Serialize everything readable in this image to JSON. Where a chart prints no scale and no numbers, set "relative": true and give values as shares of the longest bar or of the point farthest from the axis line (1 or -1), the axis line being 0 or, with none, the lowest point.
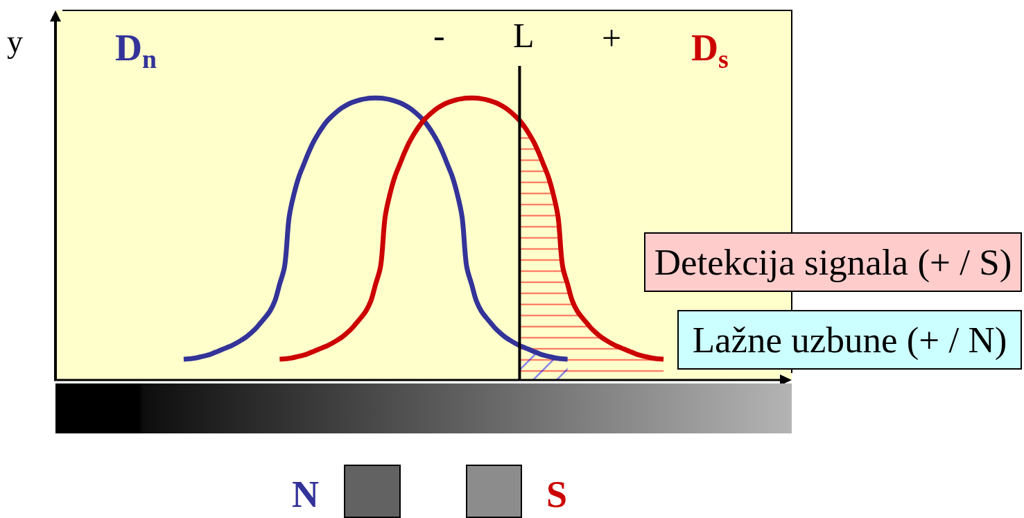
{
  "chart_data": {
    "type": "line",
    "relative": true,
    "categories": [
      null,
      null,
      null,
      null,
      null,
      null,
      null,
      null,
      null,
      null,
      null,
      null,
      null,
      null,
      null,
      null,
      null,
      null,
      null,
      null,
      null,
      null,
      null,
      null,
      null,
      null,
      null,
      null,
      null,
      null,
      null,
      null,
      null,
      null,
      null,
      null,
      null,
      null,
      null,
      null,
      null,
      null,
      null,
      null,
      null,
      null,
      null,
      null,
      null,
      null,
      null,
      null,
      null,
      null,
      null,
      null,
      null,
      null,
      null,
      null,
      null,
      null,
      null,
      null,
      null,
      null,
      null,
      null,
      null,
      null,
      null,
      null,
      null,
      null,
      null,
      null,
      null,
      null,
      null,
      null,
      null,
      null,
      null,
      null,
      null,
      null,
      null,
      null,
      null,
      null,
      null,
      null,
      null,
      null,
      null,
      null,
      null,
      null,
      null,
      null,
      null
    ],
    "series": [
      {
        "name": "D$_{n}$",
        "color": "#333399",
        "values": [
          0.074,
          0.075,
          0.077,
          0.08,
          0.084,
          0.088,
          0.094,
          0.101,
          0.108,
          0.115,
          0.122,
          0.131,
          0.141,
          0.152,
          0.166,
          0.182,
          0.202,
          0.222,
          0.245,
          0.28,
          0.34,
          0.4,
          0.58,
          0.66,
          0.72,
          0.763,
          0.805,
          0.842,
          0.872,
          0.898,
          0.92,
          0.937,
          0.952,
          0.965,
          0.975,
          0.983,
          0.989,
          0.994,
          0.997,
          0.999,
          1.0,
          0.999,
          0.997,
          0.994,
          0.989,
          0.983,
          0.975,
          0.965,
          0.952,
          0.937,
          0.92,
          0.898,
          0.872,
          0.842,
          0.805,
          0.763,
          0.72,
          0.66,
          0.58,
          0.4,
          0.34,
          0.28,
          0.245,
          0.222,
          0.202,
          0.182,
          0.166,
          0.152,
          0.141,
          0.131,
          0.122,
          0.115,
          0.108,
          0.101,
          0.094,
          0.088,
          0.084,
          0.08,
          0.077,
          0.075,
          0.074,
          null,
          null,
          null,
          null,
          null,
          null,
          null,
          null,
          null,
          null,
          null,
          null,
          null,
          null,
          null,
          null,
          null,
          null,
          null,
          null
        ]
      },
      {
        "name": "D$_{s}$",
        "color": "#cc0000",
        "values": [
          null,
          null,
          null,
          null,
          null,
          null,
          null,
          null,
          null,
          null,
          null,
          null,
          null,
          null,
          null,
          null,
          null,
          null,
          null,
          null,
          0.074,
          0.075,
          0.077,
          0.08,
          0.084,
          0.088,
          0.094,
          0.101,
          0.108,
          0.115,
          0.122,
          0.131,
          0.141,
          0.152,
          0.166,
          0.182,
          0.202,
          0.222,
          0.245,
          0.28,
          0.34,
          0.4,
          0.58,
          0.66,
          0.72,
          0.763,
          0.805,
          0.842,
          0.872,
          0.898,
          0.92,
          0.937,
          0.952,
          0.965,
          0.975,
          0.983,
          0.989,
          0.994,
          0.997,
          0.999,
          1.0,
          0.999,
          0.997,
          0.994,
          0.989,
          0.983,
          0.975,
          0.965,
          0.952,
          0.937,
          0.92,
          0.898,
          0.872,
          0.842,
          0.805,
          0.763,
          0.72,
          0.66,
          0.58,
          0.4,
          0.34,
          0.28,
          0.245,
          0.222,
          0.202,
          0.182,
          0.166,
          0.152,
          0.141,
          0.131,
          0.122,
          0.115,
          0.108,
          0.101,
          0.094,
          0.088,
          0.084,
          0.08,
          0.077,
          0.075,
          0.074
        ]
      },
      {
        "type": "area",
        "color": "#ff0000",
        "values": [
          null,
          null,
          null,
          null,
          null,
          null,
          null,
          null,
          null,
          null,
          null,
          null,
          null,
          null,
          null,
          null,
          null,
          null,
          null,
          null,
          null,
          null,
          null,
          null,
          null,
          null,
          null,
          null,
          null,
          null,
          null,
          null,
          null,
          null,
          null,
          null,
          null,
          null,
          null,
          null,
          null,
          null,
          null,
          null,
          null,
          null,
          null,
          null,
          null,
          null,
          null,
          null,
          null,
          null,
          null,
          null,
          null,
          null,
          null,
          null,
          null,
          null,
          null,
          null,
          null,
          null,
          null,
          null,
          null,
          null,
          0.92,
          0.898,
          0.872,
          0.842,
          0.805,
          0.763,
          0.72,
          0.66,
          0.58,
          0.4,
          0.34,
          0.28,
          0.245,
          0.222,
          0.202,
          0.182,
          0.166,
          0.152,
          0.141,
          0.131,
          0.122,
          0.115,
          0.108,
          0.101,
          0.094,
          0.088,
          0.084,
          0.08,
          0.077,
          0.075,
          0.074
        ]
      },
      {
        "type": "area",
        "color": "#0000ff",
        "values": [
          null,
          null,
          null,
          null,
          null,
          null,
          null,
          null,
          null,
          null,
          null,
          null,
          null,
          null,
          null,
          null,
          null,
          null,
          null,
          null,
          null,
          null,
          null,
          null,
          null,
          null,
          null,
          null,
          null,
          null,
          null,
          null,
          null,
          null,
          null,
          null,
          null,
          null,
          null,
          null,
          null,
          null,
          null,
          null,
          null,
          null,
          null,
          null,
          null,
          null,
          null,
          null,
          null,
          null,
          null,
          null,
          null,
          null,
          null,
          null,
          null,
          null,
          null,
          null,
          null,
          null,
          null,
          null,
          null,
          null,
          0.122,
          0.115,
          0.108,
          0.101,
          0.094,
          0.088,
          0.084,
          0.08,
          0.077,
          0.075,
          0.074,
          null,
          null,
          null,
          null,
          null,
          null,
          null,
          null,
          null,
          null,
          null,
          null,
          null,
          null,
          null,
          null,
          null,
          null,
          null,
          null
        ]
      }
    ],
    "annotations": [
      "y",
      "-",
      "L",
      "+",
      "Detekcija signala (+ / S)",
      "Lažne uzbune (+ / N)",
      "N",
      "S"
    ]
  }
}
